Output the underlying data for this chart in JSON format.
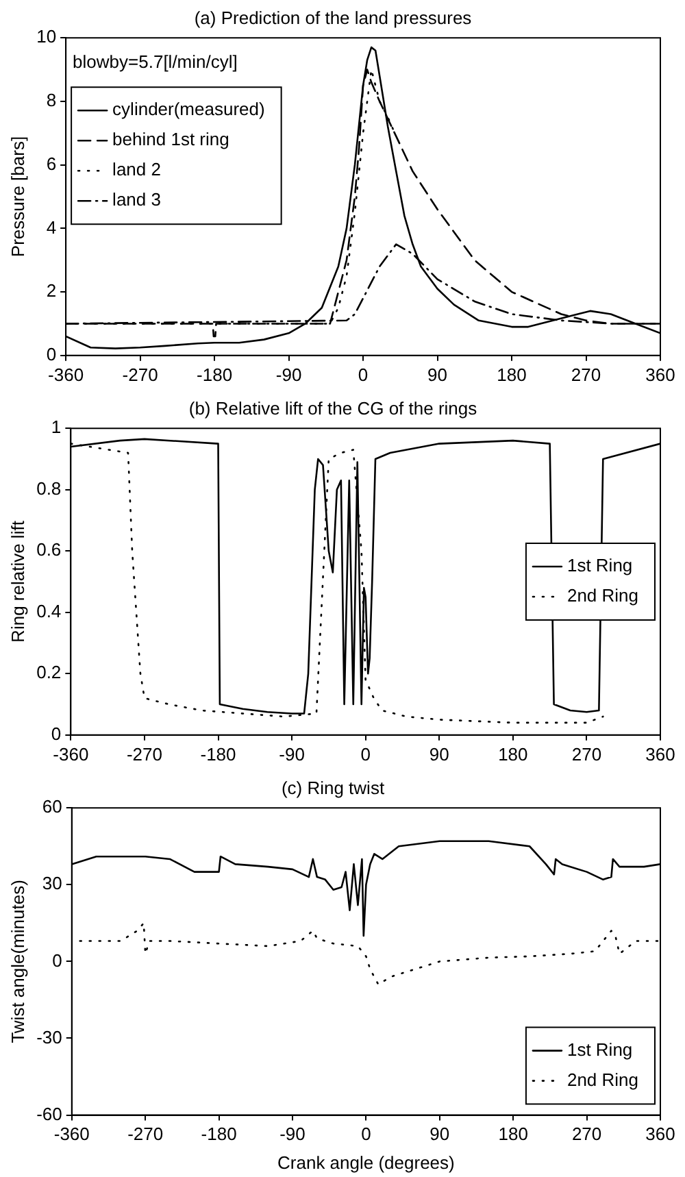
{
  "chart_data": [
    {
      "type": "line",
      "title": "(a) Prediction of the land pressures",
      "ylabel": "Pressure [bars]",
      "xlim": [
        -360,
        360
      ],
      "xticks": [
        -360,
        -270,
        -180,
        -90,
        0,
        90,
        180,
        270,
        360
      ],
      "ylim": [
        0,
        10
      ],
      "yticks": [
        0,
        2,
        4,
        6,
        8,
        10
      ],
      "grid": false,
      "legend": "top left",
      "annotations": [
        "blowby=5.7[l/min/cyl]"
      ],
      "series": [
        {
          "name": "cylinder(measured)",
          "color": "#000000",
          "line_style": "solid",
          "x": [
            -360,
            -330,
            -300,
            -270,
            -240,
            -200,
            -180,
            -150,
            -120,
            -90,
            -70,
            -50,
            -30,
            -20,
            -10,
            0,
            5,
            10,
            15,
            20,
            30,
            40,
            50,
            60,
            70,
            90,
            110,
            140,
            180,
            200,
            230,
            260,
            275,
            300,
            330,
            360
          ],
          "values": [
            0.6,
            0.25,
            0.22,
            0.25,
            0.3,
            0.38,
            0.4,
            0.4,
            0.5,
            0.7,
            1.0,
            1.5,
            2.8,
            4,
            6,
            8.5,
            9.3,
            9.7,
            9.6,
            8.8,
            7.2,
            5.8,
            4.4,
            3.5,
            2.8,
            2.1,
            1.6,
            1.1,
            0.9,
            0.9,
            1.1,
            1.3,
            1.4,
            1.3,
            1.0,
            0.7
          ]
        },
        {
          "name": "behind 1st ring",
          "color": "#000000",
          "line_style": "dashed",
          "x": [
            -360,
            -182,
            -181,
            -179,
            -178,
            -50,
            -40,
            -35,
            -20,
            -10,
            -5,
            0,
            5,
            10,
            20,
            40,
            60,
            90,
            135,
            180,
            240,
            270,
            300,
            360
          ],
          "values": [
            1.0,
            1.0,
            0.6,
            0.6,
            1.0,
            1.0,
            1.0,
            1.5,
            3,
            5,
            6.5,
            8.5,
            9.0,
            8.6,
            8.0,
            6.9,
            5.8,
            4.6,
            3.0,
            2.0,
            1.3,
            1.1,
            1.0,
            1.0
          ]
        },
        {
          "name": "land 2",
          "color": "#000000",
          "line_style": "dotted",
          "x": [
            -360,
            -40,
            -30,
            -20,
            -10,
            0,
            10,
            20,
            30,
            40
          ],
          "values": [
            1.0,
            1.0,
            1.5,
            2.5,
            4.5,
            7,
            9.0,
            8.0,
            7.5,
            6.9
          ]
        },
        {
          "name": "land 3",
          "color": "#000000",
          "line_style": "dashdot",
          "x": [
            -360,
            -20,
            -10,
            0,
            20,
            40,
            60,
            90,
            135,
            180,
            240,
            300,
            360
          ],
          "values": [
            1.0,
            1.1,
            1.3,
            1.8,
            2.8,
            3.5,
            3.2,
            2.4,
            1.7,
            1.3,
            1.1,
            1.0,
            1.0
          ]
        }
      ]
    },
    {
      "type": "line",
      "title": "(b) Relative lift of the CG of the rings",
      "ylabel": "Ring relative lift",
      "xlim": [
        -360,
        360
      ],
      "xticks": [
        -360,
        -270,
        -180,
        -90,
        0,
        90,
        180,
        270,
        360
      ],
      "ylim": [
        0,
        1
      ],
      "yticks": [
        0,
        0.2,
        0.4,
        0.6,
        0.8,
        1
      ],
      "grid": false,
      "legend": "right",
      "series": [
        {
          "name": "1st Ring",
          "color": "#000000",
          "line_style": "solid",
          "x": [
            -360,
            -300,
            -270,
            -180,
            -178,
            -150,
            -120,
            -90,
            -75,
            -70,
            -62,
            -58,
            -52,
            -45,
            -40,
            -35,
            -30,
            -26,
            -20,
            -15,
            -10,
            -5,
            -2,
            0,
            3,
            5,
            8,
            12,
            30,
            90,
            180,
            225,
            230,
            250,
            270,
            285,
            290,
            360
          ],
          "values": [
            0.94,
            0.96,
            0.965,
            0.95,
            0.1,
            0.085,
            0.075,
            0.07,
            0.07,
            0.2,
            0.8,
            0.9,
            0.88,
            0.6,
            0.53,
            0.8,
            0.83,
            0.1,
            0.83,
            0.1,
            0.89,
            0.1,
            0.48,
            0.45,
            0.2,
            0.25,
            0.5,
            0.9,
            0.92,
            0.95,
            0.96,
            0.95,
            0.1,
            0.08,
            0.075,
            0.08,
            0.9,
            0.95
          ]
        },
        {
          "name": "2nd Ring",
          "color": "#000000",
          "line_style": "dotted",
          "x": [
            -360,
            -290,
            -285,
            -275,
            -270,
            -240,
            -200,
            -150,
            -100,
            -60,
            -45,
            -30,
            -15,
            -5,
            0,
            10,
            20,
            50,
            90,
            180,
            270,
            290
          ],
          "values": [
            0.95,
            0.92,
            0.6,
            0.2,
            0.12,
            0.1,
            0.08,
            0.07,
            0.06,
            0.07,
            0.9,
            0.92,
            0.93,
            0.6,
            0.18,
            0.12,
            0.08,
            0.06,
            0.05,
            0.04,
            0.04,
            0.06
          ]
        }
      ]
    },
    {
      "type": "line",
      "title": "(c) Ring twist",
      "xlabel": "Crank angle (degrees)",
      "ylabel": "Twist angle(minutes)",
      "xlim": [
        -360,
        360
      ],
      "xticks": [
        -360,
        -270,
        -180,
        -90,
        0,
        90,
        180,
        270,
        360
      ],
      "ylim": [
        -60,
        60
      ],
      "yticks": [
        -60,
        -30,
        0,
        30,
        60
      ],
      "grid": false,
      "legend": "bottom right",
      "series": [
        {
          "name": "1st Ring",
          "color": "#000000",
          "line_style": "solid",
          "x": [
            -360,
            -330,
            -270,
            -240,
            -210,
            -180,
            -178,
            -160,
            -120,
            -90,
            -70,
            -65,
            -60,
            -50,
            -40,
            -30,
            -25,
            -20,
            -15,
            -10,
            -5,
            -3,
            0,
            5,
            10,
            20,
            40,
            90,
            150,
            200,
            220,
            230,
            232,
            240,
            270,
            290,
            300,
            302,
            310,
            340,
            360
          ],
          "values": [
            38,
            41,
            41,
            40,
            35,
            35,
            41,
            38,
            37,
            36,
            33,
            40,
            33,
            32,
            28,
            29,
            35,
            20,
            38,
            22,
            40,
            10,
            30,
            38,
            42,
            40,
            45,
            47,
            47,
            45,
            38,
            34,
            40,
            38,
            35,
            32,
            33,
            40,
            37,
            37,
            38
          ]
        },
        {
          "name": "2nd Ring",
          "color": "#000000",
          "line_style": "dotted",
          "x": [
            -350,
            -300,
            -280,
            -272,
            -270,
            -265,
            -240,
            -180,
            -120,
            -80,
            -65,
            -60,
            -40,
            -10,
            0,
            5,
            15,
            30,
            60,
            90,
            150,
            200,
            250,
            280,
            300,
            305,
            310,
            330,
            360
          ],
          "values": [
            8,
            8,
            12,
            15,
            3,
            8,
            8,
            7,
            6,
            8,
            12,
            9,
            7,
            6,
            2,
            -3,
            -9,
            -6,
            -3,
            0,
            1.5,
            2,
            3,
            4,
            12,
            10,
            3,
            8,
            8
          ]
        }
      ]
    }
  ]
}
